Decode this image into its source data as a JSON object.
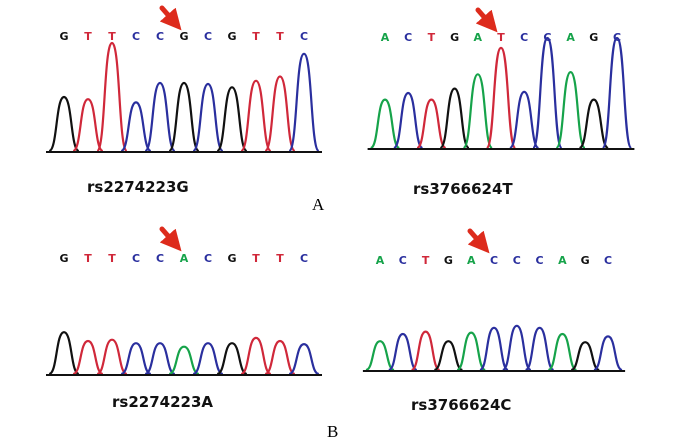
{
  "figure": {
    "panel_labels": [
      "A",
      "B"
    ],
    "base_colors": {
      "A": "#16a34a",
      "C": "#2a2f9e",
      "G": "#111111",
      "T": "#d0283a"
    },
    "arrow_color": "#dd2b1c",
    "traces": [
      {
        "label": "rs2274223G",
        "sequence": [
          "G",
          "T",
          "T",
          "C",
          "C",
          "G",
          "C",
          "G",
          "T",
          "T",
          "C"
        ],
        "arrow_index": 5,
        "peak_heights": [
          0.5,
          0.48,
          1.0,
          0.45,
          0.63,
          0.63,
          0.62,
          0.59,
          0.65,
          0.69,
          0.9
        ]
      },
      {
        "label": "rs3766624T",
        "sequence": [
          "A",
          "C",
          "T",
          "G",
          "A",
          "T",
          "C",
          "C",
          "A",
          "G",
          "C"
        ],
        "arrow_index": 5,
        "peak_heights": [
          0.44,
          0.5,
          0.44,
          0.54,
          0.67,
          0.91,
          0.51,
          1.0,
          0.69,
          0.44,
          1.0
        ]
      },
      {
        "label": "rs2274223A",
        "sequence": [
          "G",
          "T",
          "T",
          "C",
          "C",
          "A",
          "C",
          "G",
          "T",
          "T",
          "C"
        ],
        "arrow_index": 5,
        "peak_heights": [
          0.95,
          0.75,
          0.78,
          0.7,
          0.7,
          0.62,
          0.7,
          0.7,
          0.82,
          0.75,
          0.68
        ]
      },
      {
        "label": "rs3766624C",
        "sequence": [
          "A",
          "C",
          "T",
          "G",
          "A",
          "C",
          "C",
          "C",
          "A",
          "G",
          "C"
        ],
        "arrow_index": 5,
        "peak_heights": [
          0.6,
          0.75,
          0.8,
          0.6,
          0.78,
          0.88,
          0.92,
          0.88,
          0.75,
          0.58,
          0.7
        ]
      }
    ]
  }
}
